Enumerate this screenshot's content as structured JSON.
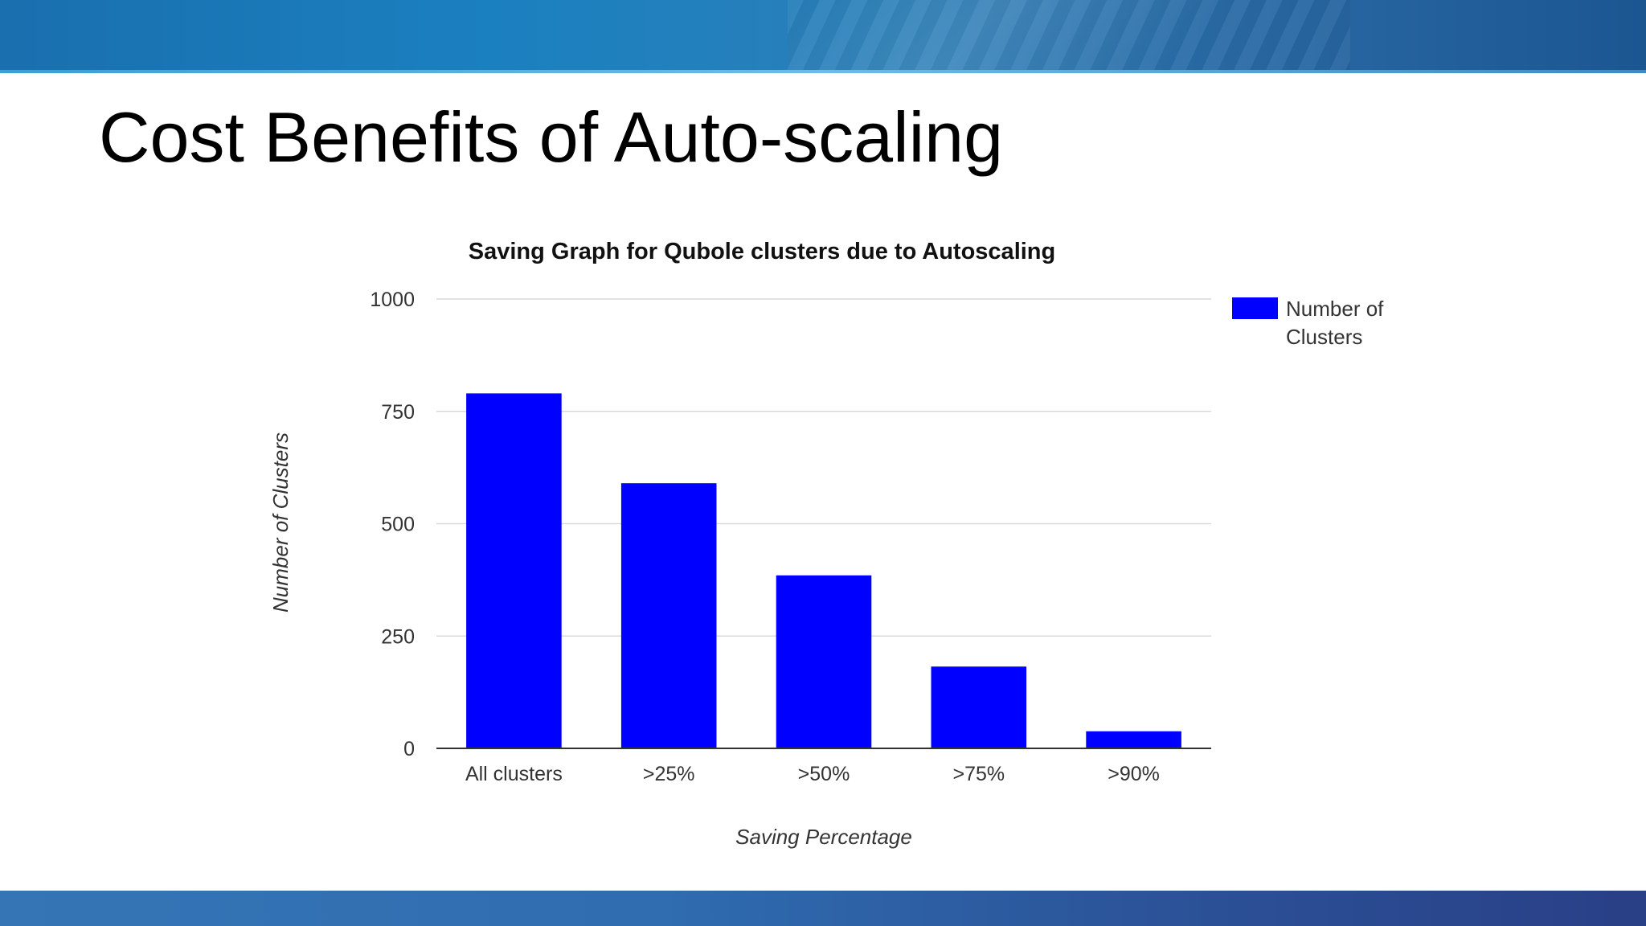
{
  "slide": {
    "title": "Cost Benefits of Auto-scaling"
  },
  "colors": {
    "bar": "#0000ff",
    "grid": "#d9d9d9",
    "axis": "#333333"
  },
  "chart_data": {
    "type": "bar",
    "title": "Saving Graph for Qubole clusters due to Autoscaling",
    "xlabel": "Saving Percentage",
    "ylabel": "Number of Clusters",
    "categories": [
      "All clusters",
      ">25%",
      ">50%",
      ">75%",
      ">90%"
    ],
    "series": [
      {
        "name": "Number of Clusters",
        "legend_lines": [
          "Number of",
          "Clusters"
        ],
        "values": [
          790,
          590,
          385,
          182,
          38
        ]
      }
    ],
    "ylim": [
      0,
      1000
    ],
    "yticks": [
      "0",
      "250",
      "500",
      "750",
      "1000"
    ],
    "grid": true,
    "legend": "top-right"
  }
}
